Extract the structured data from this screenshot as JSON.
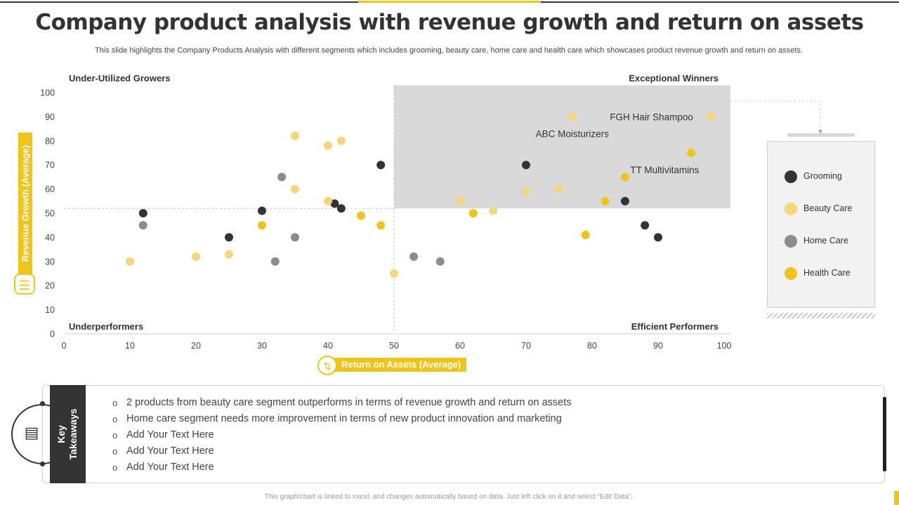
{
  "header": {
    "title": "Company product analysis with revenue growth and return on assets",
    "subtitle": "This slide highlights the Company Products Analysis with different segments which includes grooming, beauty care, home care and health care which showcases product revenue growth and return on assets."
  },
  "colors": {
    "accent": "#f0c419",
    "dark": "#333333",
    "highlight": "#d9d9d9"
  },
  "chart_data": {
    "type": "scatter",
    "xlabel": "Return on Assets (Average)",
    "ylabel": "Revenue Growth (Average)",
    "xlim": [
      0,
      100
    ],
    "ylim": [
      0,
      100
    ],
    "x_ticks": [
      0,
      10,
      20,
      30,
      40,
      50,
      60,
      70,
      80,
      90,
      100
    ],
    "y_ticks": [
      0,
      10,
      20,
      30,
      40,
      50,
      60,
      70,
      80,
      90,
      100
    ],
    "thresholds": {
      "x": 50,
      "y": 52
    },
    "highlight_region": {
      "x": [
        50,
        100
      ],
      "y": [
        52,
        103
      ]
    },
    "quadrants": {
      "top_left": "Under-Utilized Growers",
      "top_right": "Exceptional Winners",
      "bottom_left": "Underperformers",
      "bottom_right": "Efficient Performers"
    },
    "series": [
      {
        "name": "Grooming",
        "color": "#333333",
        "points": [
          [
            12,
            50
          ],
          [
            25,
            40
          ],
          [
            30,
            51
          ],
          [
            41,
            54
          ],
          [
            42,
            52
          ],
          [
            48,
            70
          ],
          [
            70,
            70
          ],
          [
            85,
            55
          ],
          [
            88,
            45
          ],
          [
            90,
            40
          ]
        ]
      },
      {
        "name": "Beauty Care",
        "color": "#f5d77a",
        "points": [
          [
            10,
            30
          ],
          [
            20,
            32
          ],
          [
            25,
            33
          ],
          [
            35,
            82
          ],
          [
            35,
            60
          ],
          [
            40,
            78
          ],
          [
            42,
            80
          ],
          [
            40,
            55
          ],
          [
            50,
            25
          ],
          [
            60,
            55
          ],
          [
            65,
            51
          ],
          [
            70,
            59
          ],
          [
            75,
            60
          ],
          [
            77,
            90
          ],
          [
            98,
            90
          ]
        ]
      },
      {
        "name": "Home Care",
        "color": "#8c8c8c",
        "points": [
          [
            12,
            45
          ],
          [
            32,
            30
          ],
          [
            33,
            65
          ],
          [
            35,
            40
          ],
          [
            53,
            32
          ],
          [
            57,
            30
          ]
        ]
      },
      {
        "name": "Health Care",
        "color": "#f0c419",
        "points": [
          [
            30,
            45
          ],
          [
            45,
            49
          ],
          [
            48,
            45
          ],
          [
            62,
            50
          ],
          [
            79,
            41
          ],
          [
            82,
            55
          ],
          [
            85,
            65
          ],
          [
            95,
            75
          ]
        ]
      }
    ],
    "annotations": [
      {
        "text": "FGH Hair Shampoo",
        "x": 89,
        "y": 90
      },
      {
        "text": "ABC Moisturizers",
        "x": 77,
        "y": 83
      },
      {
        "text": "TT Multivitamins",
        "x": 91,
        "y": 68
      }
    ]
  },
  "legend": {
    "items": [
      {
        "label": "Grooming",
        "color": "#333333"
      },
      {
        "label": "Beauty Care",
        "color": "#f5d77a"
      },
      {
        "label": "Home Care",
        "color": "#8c8c8c"
      },
      {
        "label": "Health Care",
        "color": "#f0c419"
      }
    ]
  },
  "takeaways": {
    "title_line1": "Key",
    "title_line2": "Takeaways",
    "items": [
      "2 products from beauty care segment outperforms in terms of revenue growth and return on assets",
      "Home care segment needs more improvement in terms of new product innovation and marketing",
      "Add Your Text Here",
      "Add Your Text Here",
      "Add Your Text Here"
    ]
  },
  "footer": {
    "note": "This graph/chart is linked to excel, and changes automatically based on data. Just left click on it and select “Edit Data”."
  }
}
